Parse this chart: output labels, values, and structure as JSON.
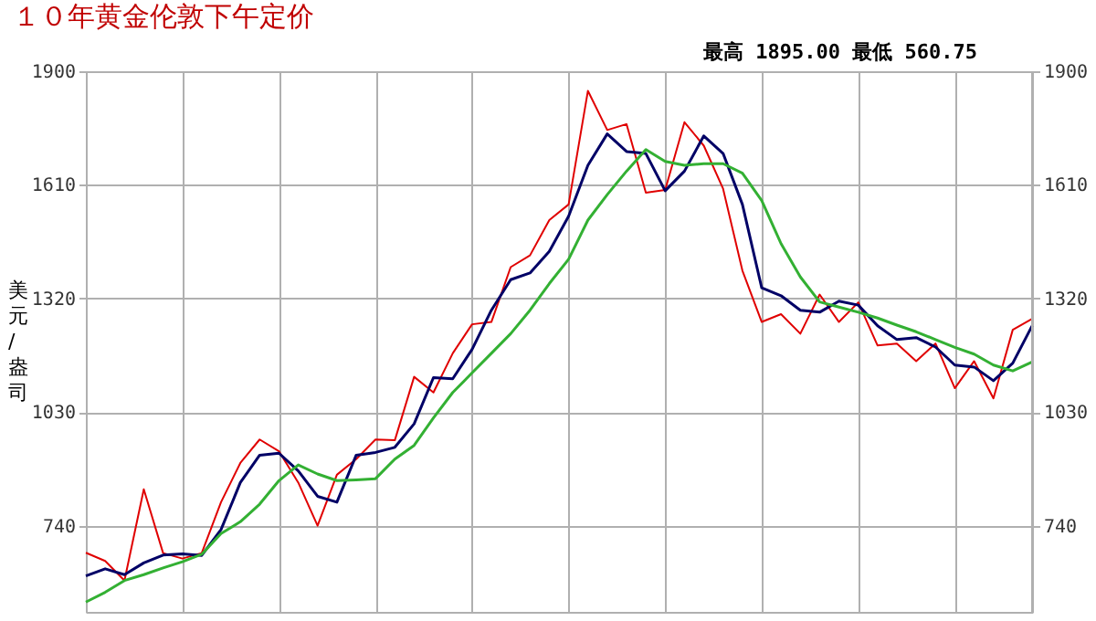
{
  "chart_data": {
    "type": "line",
    "title": "１０年黄金伦敦下午定价",
    "ylabel": "美元/盎司",
    "annotations": [
      "最高 1895.00  最低 560.75"
    ],
    "categories": [
      null,
      null,
      null,
      null,
      null,
      null,
      null,
      null,
      null,
      null,
      null,
      null,
      null,
      null,
      null,
      null,
      null,
      null,
      null,
      null,
      null,
      null,
      null,
      null,
      null,
      null,
      null,
      null,
      null,
      null,
      null,
      null,
      null,
      null,
      null,
      null,
      null,
      null,
      null,
      null,
      null,
      null,
      null,
      null,
      null,
      null,
      null,
      null,
      null,
      null
    ],
    "ylim": [
      520,
      1900
    ],
    "yticks": [
      740,
      1030,
      1320,
      1610,
      1900
    ],
    "y2lim": [
      520,
      1900
    ],
    "y2ticks": [
      740,
      1030,
      1320,
      1610,
      1900
    ],
    "tick_labels": "y",
    "grid": true,
    "marker": "none",
    "line_style": "solid",
    "series": [
      {
        "color": "#e00000",
        "values": [
          671,
          650,
          600,
          833,
          670,
          656,
          670,
          800,
          900,
          960,
          930,
          850,
          740,
          870,
          910,
          960,
          958,
          1120,
          1080,
          1180,
          1254,
          1260,
          1400,
          1430,
          1520,
          1560,
          1850,
          1750,
          1765,
          1590,
          1597,
          1770,
          1710,
          1600,
          1391,
          1260,
          1280,
          1230,
          1330,
          1260,
          1310,
          1200,
          1205,
          1160,
          1205,
          1091,
          1160,
          1065,
          1240,
          1268
        ]
      },
      {
        "color": "#000066",
        "values": [
          612,
          630,
          615,
          645,
          665,
          668,
          664,
          730,
          850,
          920,
          925,
          880,
          815,
          800,
          920,
          927,
          940,
          1000,
          1118,
          1115,
          1190,
          1290,
          1368,
          1385,
          1440,
          1530,
          1660,
          1740,
          1695,
          1690,
          1595,
          1645,
          1735,
          1690,
          1560,
          1347,
          1327,
          1290,
          1285,
          1313,
          1303,
          1250,
          1215,
          1220,
          1196,
          1150,
          1145,
          1110,
          1155,
          1250
        ]
      },
      {
        "color": "#33b033",
        "values": [
          545,
          570,
          600,
          615,
          632,
          648,
          667,
          720,
          750,
          795,
          855,
          895,
          872,
          855,
          857,
          860,
          910,
          945,
          1015,
          1080,
          1130,
          1180,
          1230,
          1290,
          1358,
          1420,
          1520,
          1585,
          1645,
          1700,
          1670,
          1660,
          1664,
          1664,
          1640,
          1570,
          1460,
          1375,
          1311,
          1298,
          1285,
          1270,
          1252,
          1235,
          1215,
          1195,
          1178,
          1150,
          1135,
          1158
        ]
      }
    ]
  }
}
